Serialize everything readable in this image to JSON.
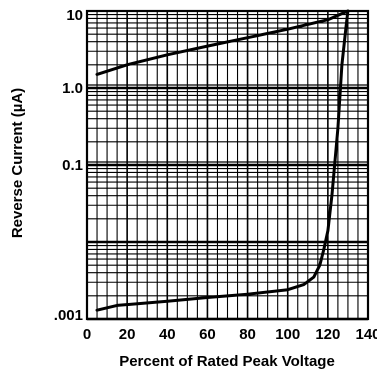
{
  "chart_data": {
    "type": "line",
    "title": "",
    "xlabel": "Percent of Rated Peak Voltage",
    "ylabel": "Reverse Current (µA)",
    "xlim": [
      0,
      140
    ],
    "ylim": [
      0.001,
      10
    ],
    "y_scale": "log",
    "grid": true,
    "x_ticks": [
      0,
      20,
      40,
      60,
      80,
      100,
      120,
      140
    ],
    "x_tick_labels": [
      "0",
      "20",
      "40",
      "60",
      "80",
      "100",
      "120",
      "140"
    ],
    "y_ticks": [
      0.001,
      0.1,
      1,
      10
    ],
    "y_tick_labels": [
      ".001",
      "0.1",
      "1.0",
      "10"
    ],
    "series": [
      {
        "x": [
          5,
          20,
          40,
          60,
          80,
          100,
          120,
          130
        ],
        "y": [
          1.5,
          2.0,
          2.7,
          3.5,
          4.5,
          5.8,
          7.7,
          10
        ]
      },
      {
        "x": [
          5,
          15,
          40,
          60,
          80,
          100,
          108,
          113,
          116,
          118,
          120,
          122,
          125,
          127,
          129,
          130
        ],
        "y": [
          0.0013,
          0.0015,
          0.0017,
          0.0019,
          0.0021,
          0.0024,
          0.0028,
          0.0035,
          0.005,
          0.008,
          0.014,
          0.04,
          0.3,
          2.0,
          6.0,
          10
        ]
      }
    ]
  }
}
